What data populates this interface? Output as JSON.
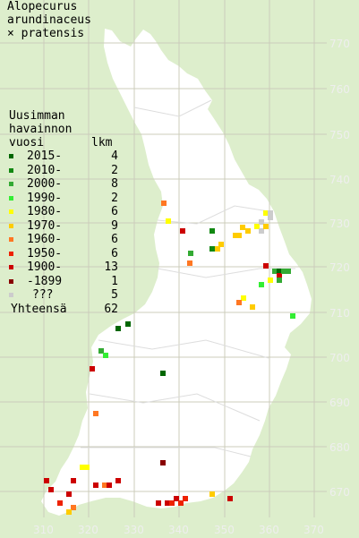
{
  "title_lines": [
    "Alopecurus",
    "arundinaceus",
    "× pratensis"
  ],
  "legend": {
    "header_lines": [
      "Uusimman",
      "havainnon"
    ],
    "col_year": "vuosi",
    "col_count": "lkm",
    "items": [
      {
        "label": "2015-",
        "count": "4",
        "color": "#006600"
      },
      {
        "label": "2010-",
        "count": "2",
        "color": "#118811"
      },
      {
        "label": "2000-",
        "count": "8",
        "color": "#33aa33"
      },
      {
        "label": "1990-",
        "count": "2",
        "color": "#33ee33"
      },
      {
        "label": "1980-",
        "count": "6",
        "color": "#ffff00"
      },
      {
        "label": "1970-",
        "count": "9",
        "color": "#ffcc00"
      },
      {
        "label": "1960-",
        "count": "6",
        "color": "#ff7722"
      },
      {
        "label": "1950-",
        "count": "6",
        "color": "#ee2200"
      },
      {
        "label": "1900-",
        "count": "13",
        "color": "#cc0000"
      },
      {
        "label": "-1899",
        "count": "1",
        "color": "#880000"
      },
      {
        "label": "???",
        "count": "5",
        "color": "#cccccc"
      }
    ],
    "total_label": "Yhteensä",
    "total_count": "62"
  },
  "y_ticks": [
    "770",
    "760",
    "750",
    "740",
    "730",
    "720",
    "710",
    "700",
    "690",
    "680",
    "670"
  ],
  "x_ticks": [
    "310",
    "320",
    "330",
    "340",
    "350",
    "360",
    "370"
  ],
  "colors": {
    "background": "#ddeecc",
    "land": "#ffffff",
    "grid": "#ccccbb",
    "tick_text": "#eeeeee"
  }
}
